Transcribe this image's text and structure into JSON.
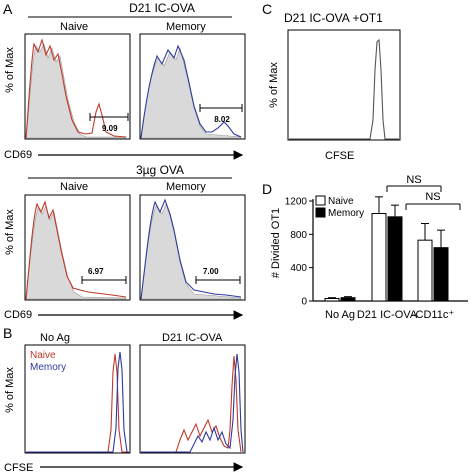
{
  "panels": {
    "A": "A",
    "B": "B",
    "C": "C",
    "D": "D"
  },
  "panel_a": {
    "top_header": "D21 IC-OVA",
    "bottom_header": "3µg OVA",
    "col_naive": "Naive",
    "col_memory": "Memory",
    "ylabel": "% of Max",
    "xlabel": "CD69",
    "gates": {
      "top_naive": "9.09",
      "top_memory": "8.02",
      "bottom_naive": "6.97",
      "bottom_memory": "7.00"
    }
  },
  "panel_b": {
    "header_left": "No Ag",
    "header_right": "D21 IC-OVA",
    "ylabel": "% of Max",
    "xlabel": "CFSE",
    "legend": [
      {
        "label": "Naive",
        "color": "#c0392b"
      },
      {
        "label": "Memory",
        "color": "#2e3a9e"
      }
    ]
  },
  "panel_c": {
    "title": "D21 IC-OVA +OT1",
    "ylabel": "% of Max",
    "xlabel": "CFSE"
  },
  "colors": {
    "naive": "#c0392b",
    "memory": "#2e3a9e",
    "fill": "#d9d9d9"
  },
  "chart_data": {
    "type": "bar",
    "ylabel": "# Divided OT1",
    "ylim": [
      0,
      1200
    ],
    "yticks": [
      "0",
      "400",
      "800",
      "1200"
    ],
    "categories": [
      "No Ag",
      "D21 IC-OVA",
      "-CD11c⁺"
    ],
    "series": [
      {
        "name": "Naive",
        "values": [
          30,
          1050,
          730
        ],
        "errors": [
          10,
          200,
          200
        ],
        "color": "#ffffff"
      },
      {
        "name": "Memory",
        "values": [
          40,
          1010,
          640
        ],
        "errors": [
          12,
          140,
          210
        ],
        "color": "#000000"
      }
    ],
    "significance": [
      "NS",
      "NS"
    ]
  }
}
